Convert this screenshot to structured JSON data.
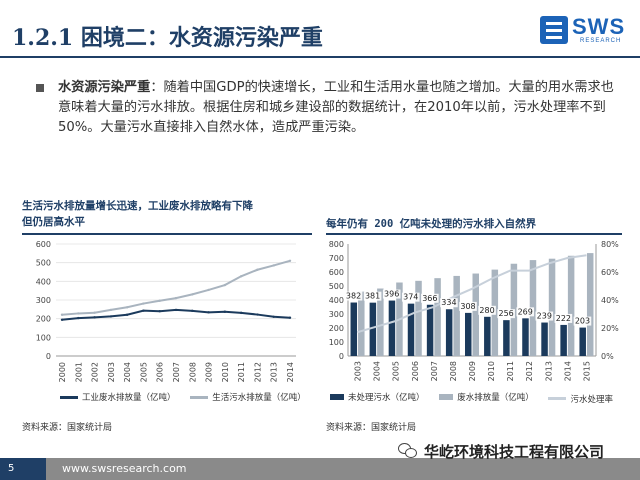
{
  "header": {
    "title": "1.2.1 困境二：水资源污染严重",
    "logo_name": "SWS",
    "logo_sub": "RESEARCH"
  },
  "bullet": {
    "lead": "水资源污染严重",
    "text": "：随着中国GDP的快速增长，工业和生活用水量也随之增加。大量的用水需求也意味着大量的污水排放。根据住房和城乡建设部的数据统计，在2010年以前，污水处理率不到50%。大量污水直接排入自然水体，造成严重污染。"
  },
  "left_panel": {
    "title_line1": "生活污水排放量增长迅速，工业废水排放略有下降",
    "title_line2": "但仍居高水平",
    "source": "资料来源：国家统计局"
  },
  "right_panel": {
    "title": "每年仍有 200 亿吨未处理的污水排入自然界",
    "source": "资料来源：国家统计局"
  },
  "chart_data": [
    {
      "type": "line",
      "x": [
        "2000",
        "2001",
        "2002",
        "2003",
        "2004",
        "2005",
        "2006",
        "2007",
        "2008",
        "2009",
        "2010",
        "2011",
        "2012",
        "2013",
        "2014"
      ],
      "ylim": [
        0,
        600
      ],
      "yticks": [
        0,
        100,
        200,
        300,
        400,
        500,
        600
      ],
      "series": [
        {
          "name": "工业废水排放量（亿吨）",
          "color": "#1b3a5c",
          "values": [
            194,
            203,
            207,
            212,
            221,
            243,
            240,
            247,
            242,
            234,
            237,
            231,
            222,
            210,
            205
          ]
        },
        {
          "name": "生活污水排放量（亿吨）",
          "color": "#a9b4bf",
          "values": [
            221,
            228,
            232,
            247,
            261,
            281,
            296,
            310,
            330,
            354,
            380,
            427,
            462,
            485,
            510
          ]
        }
      ]
    },
    {
      "type": "bar",
      "categories": [
        "2003",
        "2004",
        "2005",
        "2006",
        "2007",
        "2008",
        "2009",
        "2010",
        "2011",
        "2012",
        "2013",
        "2014",
        "2015"
      ],
      "ylim": [
        0,
        800
      ],
      "yticks": [
        0,
        100,
        200,
        300,
        400,
        500,
        600,
        700,
        800
      ],
      "y2lim": [
        0,
        80
      ],
      "y2ticks": [
        "0%",
        "20%",
        "40%",
        "60%",
        "80%"
      ],
      "series": [
        {
          "name": "未处理污水（亿吨）",
          "color": "#1b3a5c",
          "values": [
            382,
            381,
            396,
            374,
            366,
            334,
            308,
            280,
            256,
            269,
            239,
            222,
            203
          ],
          "labels": [
            "382",
            "381",
            "396",
            "374",
            "366",
            "334",
            "308",
            "280",
            "256",
            "269",
            "239",
            "222",
            "203"
          ]
        },
        {
          "name": "废水排放量（亿吨）",
          "color": "#a9b4bf",
          "values": [
            460,
            482,
            525,
            537,
            556,
            572,
            589,
            617,
            659,
            685,
            695,
            716,
            735
          ]
        },
        {
          "name": "污水处理率",
          "color": "#c7d0da",
          "axis": "right",
          "values": [
            17,
            21,
            25,
            31,
            35,
            42,
            48,
            55,
            61,
            61,
            66,
            70,
            72
          ]
        }
      ]
    }
  ],
  "footer": {
    "page": "5",
    "url": "www.swsresearch.com"
  },
  "watermark": {
    "text": "华屹环境科技工程有限公司"
  }
}
